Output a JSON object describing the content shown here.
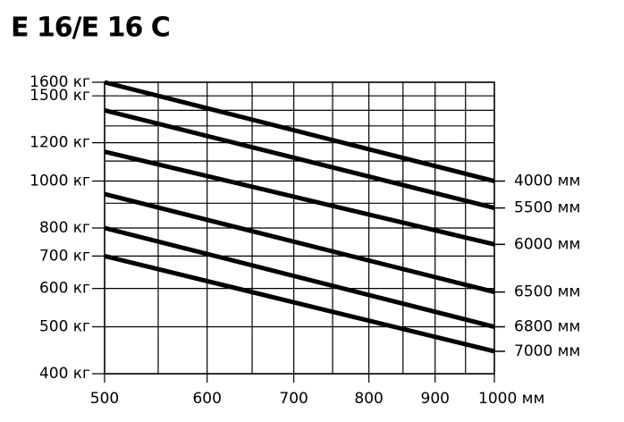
{
  "chart_data": {
    "type": "line",
    "title": "E 16/E 16 C",
    "xscale": "log",
    "yscale": "log",
    "grid": true,
    "color": "#000000",
    "xlim": [
      500,
      1000
    ],
    "xticks": [
      500,
      600,
      700,
      800,
      900,
      {
        "value": 1000,
        "label": "1000 мм"
      }
    ],
    "xminor": [
      550,
      650,
      750,
      850,
      950
    ],
    "ylim": [
      400,
      1600
    ],
    "yticks": [
      {
        "value": 400,
        "label": "400 кг"
      },
      {
        "value": 500,
        "label": "500 кг"
      },
      {
        "value": 600,
        "label": "600 кг"
      },
      {
        "value": 700,
        "label": "700 кг"
      },
      {
        "value": 800,
        "label": "800 кг"
      },
      {
        "value": 1000,
        "label": "1000 кг"
      },
      {
        "value": 1200,
        "label": "1200 кг"
      },
      {
        "value": 1500,
        "label": "1500 кг"
      },
      {
        "value": 1600,
        "label": "1600 кг"
      }
    ],
    "yminor": [
      900,
      1100,
      1300,
      1400
    ],
    "x": [
      500,
      1000
    ],
    "series": [
      {
        "name": "4000 мм",
        "color": "#000000",
        "values": [
          1600,
          1000
        ]
      },
      {
        "name": "5500 мм",
        "color": "#000000",
        "values": [
          1400,
          880
        ]
      },
      {
        "name": "6000 мм",
        "color": "#000000",
        "values": [
          1150,
          740
        ]
      },
      {
        "name": "6500 мм",
        "color": "#000000",
        "values": [
          940,
          590
        ]
      },
      {
        "name": "6800 мм",
        "color": "#000000",
        "values": [
          800,
          500
        ]
      },
      {
        "name": "7000 мм",
        "color": "#000000",
        "values": [
          700,
          445
        ]
      }
    ]
  }
}
